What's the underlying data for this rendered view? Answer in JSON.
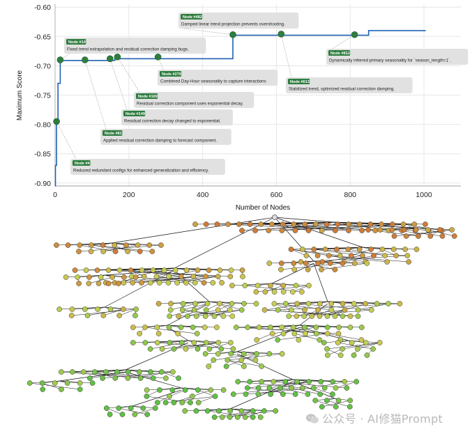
{
  "chart_data": [
    {
      "type": "line",
      "title": "",
      "xlabel": "Number of Nodes",
      "ylabel": "Maximum Score",
      "xlim": [
        0,
        1100
      ],
      "ylim": [
        -0.905,
        -0.595
      ],
      "x_ticks": [
        0,
        200,
        400,
        600,
        800,
        1000
      ],
      "y_ticks": [
        -0.6,
        -0.65,
        -0.7,
        -0.75,
        -0.8,
        -0.85,
        -0.9
      ],
      "x_tick_labels": [
        "0",
        "200",
        "400",
        "600",
        "800",
        "1000"
      ],
      "y_tick_labels": [
        "-0.60",
        "-0.65",
        "-0.70",
        "-0.75",
        "-0.80",
        "-0.85",
        "-0.90"
      ],
      "grid": true,
      "line_color": "#1f63b5",
      "marker_color": "#2e7d3f",
      "series": [
        {
          "step_x": [
            0,
            1,
            1,
            4,
            4,
            8,
            8,
            14,
            14,
            162,
            162,
            482,
            482,
            850,
            850,
            1005
          ],
          "step_y": [
            -0.905,
            -0.905,
            -0.87,
            -0.87,
            -0.795,
            -0.795,
            -0.73,
            -0.73,
            -0.691,
            -0.691,
            -0.688,
            -0.688,
            -0.648,
            -0.648,
            -0.64,
            -0.64
          ]
        }
      ],
      "markers": [
        {
          "x": 4,
          "y": -0.795
        },
        {
          "x": 14,
          "y": -0.69
        },
        {
          "x": 81,
          "y": -0.69
        },
        {
          "x": 149,
          "y": -0.688
        },
        {
          "x": 169,
          "y": -0.685
        },
        {
          "x": 279,
          "y": -0.685
        },
        {
          "x": 482,
          "y": -0.647
        },
        {
          "x": 613,
          "y": -0.646
        },
        {
          "x": 812,
          "y": -0.647
        }
      ],
      "annotations": [
        {
          "node_label": "Node #482",
          "text": "Damped linear trend projection prevents overshooting.",
          "x": 482,
          "y": -0.647
        },
        {
          "node_label": "Node #14",
          "text": "Fixed trend extrapolation and residual correction damping bugs.",
          "x": 14,
          "y": -0.69
        },
        {
          "node_label": "Node #812",
          "text": "Dynamically inferred primary seasonality for `season_length=1`.",
          "x": 812,
          "y": -0.647
        },
        {
          "node_label": "Node #279",
          "text": "Combined Day-Hour seasonality to capture interactions",
          "x": 279,
          "y": -0.685
        },
        {
          "node_label": "Node #613",
          "text": "Stabilized trend, optimized residual correction damping.",
          "x": 613,
          "y": -0.646
        },
        {
          "node_label": "Node #169",
          "text": "Residual correction component uses exponential decay.",
          "x": 169,
          "y": -0.685
        },
        {
          "node_label": "Node #149",
          "text": "Residual correction decay changed to exponential.",
          "x": 149,
          "y": -0.688
        },
        {
          "node_label": "Node #81",
          "text": "Applied residual correction damping to forecast component.",
          "x": 81,
          "y": -0.69
        },
        {
          "node_label": "Node #4",
          "text": "Reduced redundant configs for enhanced generalization and efficiency.",
          "x": 4,
          "y": -0.795
        }
      ]
    },
    {
      "type": "tree",
      "description_colors": {
        "node_low": "#cf7a3a",
        "node_mid": "#c8cf55",
        "node_high": "#5fc046",
        "edge": "#111111"
      }
    }
  ],
  "watermark": {
    "text": "公众号 · AI修猫Prompt"
  }
}
